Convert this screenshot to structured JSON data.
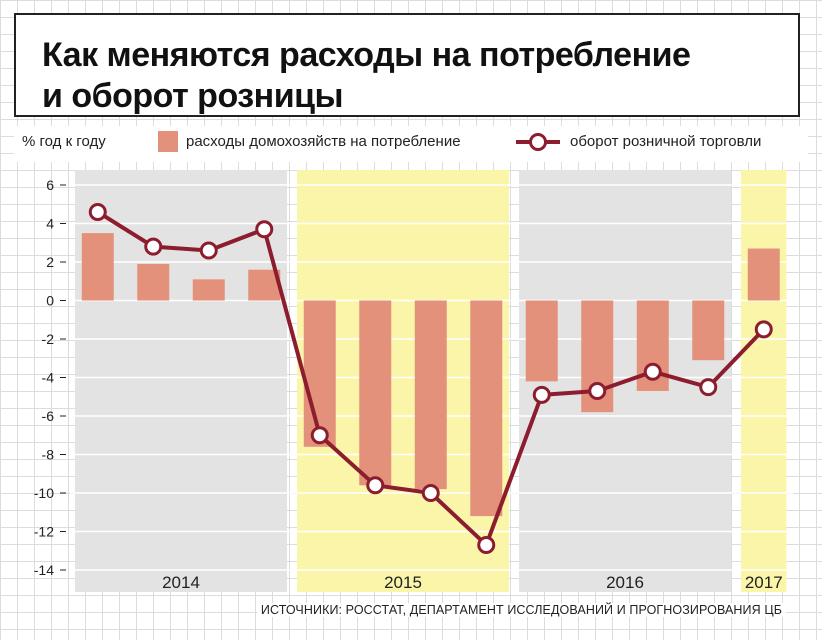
{
  "header": {
    "title_line1": "Как меняются расходы на потребление",
    "title_line2": "и оборот розницы"
  },
  "legend": {
    "unit": "% год к году",
    "bars_label": "расходы домохозяйств на потребление",
    "line_label": "оборот розничной торговли"
  },
  "source": "ИСТОЧНИКИ: РОССТАТ, ДЕПАРТАМЕНТ ИССЛЕДОВАНИЙ И ПРОГНОЗИРОВАНИЯ ЦБ",
  "colors": {
    "bar": "#e3917b",
    "line": "#8c1d2e",
    "band_gray": "#e3e3e3",
    "band_yellow": "#fbf5a9"
  },
  "chart_data": {
    "type": "bar+line",
    "ylim": [
      -14,
      6
    ],
    "yticks": [
      "6",
      "4",
      "2",
      "0",
      "-2",
      "-4",
      "-6",
      "-8",
      "-10",
      "-12",
      "-14"
    ],
    "categories": [
      "2014 Q1",
      "2014 Q2",
      "2014 Q3",
      "2014 Q4",
      "2015 Q1",
      "2015 Q2",
      "2015 Q3",
      "2015 Q4",
      "2016 Q1",
      "2016 Q2",
      "2016 Q3",
      "2016 Q4",
      "2017 Q1"
    ],
    "series": [
      {
        "name": "расходы домохозяйств на потребление",
        "kind": "bar",
        "values": [
          3.5,
          1.9,
          1.1,
          1.6,
          -7.6,
          -9.6,
          -9.8,
          -11.2,
          -4.2,
          -5.8,
          -4.7,
          -3.1,
          2.7
        ]
      },
      {
        "name": "оборот розничной торговли",
        "kind": "line",
        "values": [
          4.6,
          2.8,
          2.6,
          3.7,
          -7.0,
          -9.6,
          -10.0,
          -12.7,
          -4.9,
          -4.7,
          -3.7,
          -4.5,
          -1.5
        ]
      }
    ],
    "years": [
      {
        "label": "2014",
        "band": "gray"
      },
      {
        "label": "2015",
        "band": "yellow"
      },
      {
        "label": "2016",
        "band": "gray"
      },
      {
        "label": "2017",
        "band": "yellow"
      }
    ],
    "grid": true,
    "legend_position": "top"
  }
}
